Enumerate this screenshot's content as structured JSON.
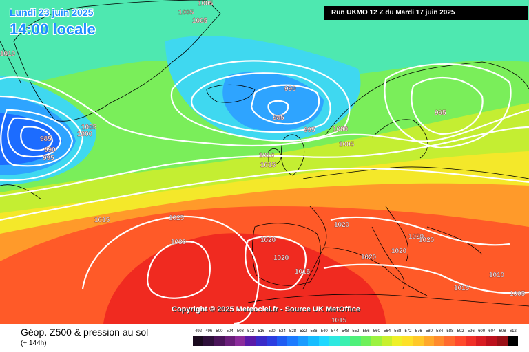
{
  "header": {
    "date_label": "Lundi 23 juin 2025",
    "time_label": "14:00 locale",
    "run_label": "Run UKMO 12 Z du Mardi 17 juin 2025"
  },
  "copyright": "Copyright © 2025 Meteociel.fr - Source UK MetOffice",
  "footer": {
    "title": "Géop. Z500 & pression au sol",
    "subtitle": "(+ 144h)"
  },
  "scale": {
    "values": [
      "492",
      "496",
      "500",
      "504",
      "508",
      "512",
      "516",
      "520",
      "524",
      "528",
      "532",
      "536",
      "540",
      "544",
      "548",
      "552",
      "556",
      "560",
      "564",
      "568",
      "572",
      "576",
      "580",
      "584",
      "588",
      "592",
      "596",
      "600",
      "604",
      "608",
      "612"
    ],
    "colors": [
      "#1a0a1e",
      "#2e0f3a",
      "#4a1459",
      "#6a1e7a",
      "#8b2b9b",
      "#5a1aa8",
      "#3a2ac8",
      "#2b3de0",
      "#1f5cf2",
      "#1c7bff",
      "#1a9cff",
      "#16bdff",
      "#1fd8ff",
      "#2ee8e0",
      "#3af0b0",
      "#4ef07a",
      "#6ef05a",
      "#9cf240",
      "#c8f02e",
      "#eef028",
      "#fde028",
      "#ffc828",
      "#ffa82a",
      "#ff8a2c",
      "#ff6a2e",
      "#ff4a2c",
      "#f03028",
      "#d81c22",
      "#bc101c",
      "#981016",
      "#000000"
    ]
  },
  "map_palette": {
    "deep_blue": "#1c6cff",
    "blue": "#2ea4ff",
    "cyan": "#3fd8f0",
    "aqua_green": "#4ee8b0",
    "green": "#7aee5a",
    "yellow_green": "#c4ee32",
    "yellow": "#f4e82a",
    "orange": "#ff9a2a",
    "red_orange": "#ff5a28",
    "red": "#f02a20",
    "coast": "#000000",
    "isobar": "#ffffff"
  },
  "isobar_labels": [
    {
      "id": "p1005a",
      "text": "1005"
    },
    {
      "id": "p1005b",
      "text": "1005"
    },
    {
      "id": "p1005c",
      "text": "1005"
    },
    {
      "id": "p1010a",
      "text": "1010"
    },
    {
      "id": "p985a",
      "text": "985"
    },
    {
      "id": "p990a",
      "text": "990"
    },
    {
      "id": "p995a",
      "text": "995"
    },
    {
      "id": "p1005d",
      "text": "1005"
    },
    {
      "id": "p1000a",
      "text": "1000"
    },
    {
      "id": "p990b",
      "text": "990"
    },
    {
      "id": "p985b",
      "text": "985"
    },
    {
      "id": "p995b",
      "text": "995"
    },
    {
      "id": "p1000b",
      "text": "1000"
    },
    {
      "id": "p1005e",
      "text": "1005"
    },
    {
      "id": "p995c",
      "text": "995"
    },
    {
      "id": "p1010b",
      "text": "1010"
    },
    {
      "id": "p1015a",
      "text": "1015"
    },
    {
      "id": "p1015b",
      "text": "1015"
    },
    {
      "id": "p1025a",
      "text": "1025"
    },
    {
      "id": "p1030a",
      "text": "1030"
    },
    {
      "id": "p1020a",
      "text": "1020"
    },
    {
      "id": "p1020b",
      "text": "1020"
    },
    {
      "id": "p1020c",
      "text": "1020"
    },
    {
      "id": "p1015c",
      "text": "1015"
    },
    {
      "id": "p1020d",
      "text": "1020"
    },
    {
      "id": "p1020e",
      "text": "1020"
    },
    {
      "id": "p1020f",
      "text": "1020"
    },
    {
      "id": "p1020g",
      "text": "1020"
    },
    {
      "id": "p1010c",
      "text": "1010"
    },
    {
      "id": "p1015d",
      "text": "1015"
    },
    {
      "id": "p1005f",
      "text": "1005"
    },
    {
      "id": "p1015e",
      "text": "1015"
    }
  ]
}
